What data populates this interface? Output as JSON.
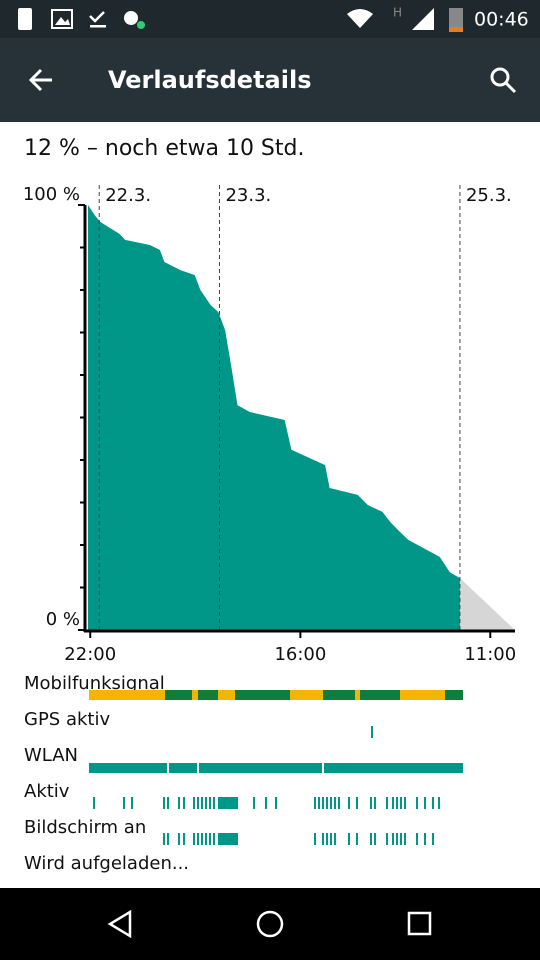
{
  "status_bar": {
    "time": "00:46",
    "network_type": "H"
  },
  "app_bar": {
    "title": "Verlaufsdetails"
  },
  "summary": "12 % – noch etwa 10 Std.",
  "battery_chart": {
    "type": "area",
    "color": "#009688",
    "x": [
      0,
      0.6,
      1.1,
      2.8,
      3.3,
      5.5,
      6.4,
      6.8,
      8.2,
      9.5,
      10,
      10.9,
      11.6,
      12.2,
      12.8,
      13.3,
      14.4,
      17.5,
      18.1,
      21.1,
      21.5,
      24,
      24.9,
      26.2,
      26.9,
      27.6,
      28.5,
      31.3,
      32.2,
      33.1
    ],
    "values": [
      100,
      97.6,
      96,
      93.2,
      91.8,
      90.6,
      89.4,
      86.6,
      84.7,
      83.5,
      80,
      76.5,
      74.8,
      70.6,
      61.2,
      52.9,
      51.3,
      49.4,
      42.4,
      38.8,
      33.4,
      31.8,
      29.4,
      27.8,
      25.4,
      23.5,
      21.2,
      17.2,
      13.6,
      12.2
    ],
    "projection": {
      "x": [
        33.1,
        38
      ],
      "values": [
        12.2,
        0
      ],
      "color": "#d6d6d6"
    },
    "xlim": [
      0,
      38
    ],
    "ylim": [
      0,
      100
    ],
    "yticks": [
      {
        "value": 0,
        "label": "0 %"
      },
      {
        "value": 100,
        "label": "100 %"
      }
    ],
    "yminorticks": [
      10,
      20,
      30,
      40,
      50,
      60,
      70,
      80,
      90
    ],
    "xticks": [
      {
        "value": 0.2,
        "label": "22:00"
      },
      {
        "value": 18.9,
        "label": "16:00"
      },
      {
        "value": 35.8,
        "label": "11:00"
      }
    ],
    "date_markers": [
      {
        "value": 1,
        "label": "22.3."
      },
      {
        "value": 11.7,
        "label": "23.3."
      },
      {
        "value": 33.1,
        "label": "25.3."
      }
    ]
  },
  "signal_rows": [
    "Mobilfunksignal",
    "GPS aktiv",
    "WLAN",
    "Aktiv",
    "Bildschirm an",
    "Wird aufgeladen..."
  ]
}
